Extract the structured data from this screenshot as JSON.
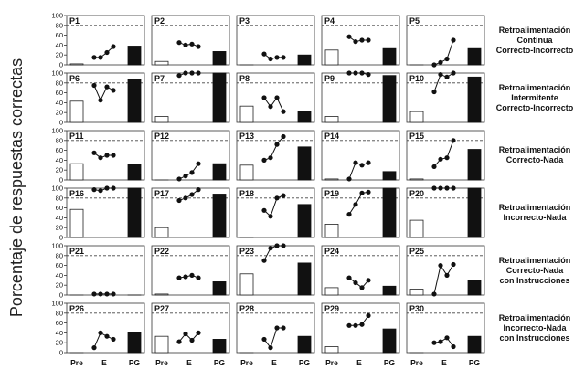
{
  "ylabel": "Porcentaje de respuestas correctas",
  "conditions": [
    [
      "Retroalimentación",
      "Continua",
      "Correcto-Incorrecto"
    ],
    [
      "Retroalimentación",
      "Intermitente",
      "Correcto-Incorrecto"
    ],
    [
      "Retroalimentación",
      "Correcto-Nada"
    ],
    [
      "Retroalimentación",
      "Incorrecto-Nada"
    ],
    [
      "Retroalimentación",
      "Correcto-Nada",
      "con Instrucciones"
    ],
    [
      "Retroalimentación",
      "Incorrecto-Nada",
      "con Instrucciones"
    ]
  ],
  "chart_data": {
    "type": "small-multiples (bar + line)",
    "xticks": [
      "Pre",
      "E",
      "PG"
    ],
    "yticks": [
      0,
      20,
      40,
      60,
      80,
      100
    ],
    "ylim": [
      0,
      100
    ],
    "criterion_line": 80,
    "panels": [
      {
        "label": "P1",
        "pre": 2,
        "e": [
          15,
          15,
          25,
          37
        ],
        "pg": 38
      },
      {
        "label": "P2",
        "pre": 7,
        "e": [
          45,
          40,
          42,
          37
        ],
        "pg": 27
      },
      {
        "label": "P3",
        "pre": 0,
        "e": [
          22,
          12,
          15,
          15
        ],
        "pg": 20
      },
      {
        "label": "P4",
        "pre": 30,
        "e": [
          57,
          47,
          50,
          50
        ],
        "pg": 33
      },
      {
        "label": "P5",
        "pre": 0,
        "e": [
          0,
          5,
          12,
          50
        ],
        "pg": 33
      },
      {
        "label": "P6",
        "pre": 43,
        "e": [
          75,
          45,
          72,
          65
        ],
        "pg": 88
      },
      {
        "label": "P7",
        "pre": 12,
        "e": [
          95,
          100,
          100,
          100
        ],
        "pg": 100
      },
      {
        "label": "P8",
        "pre": 33,
        "e": [
          50,
          32,
          50,
          22
        ],
        "pg": 22
      },
      {
        "label": "P9",
        "pre": 12,
        "e": [
          100,
          100,
          100,
          97
        ],
        "pg": 95
      },
      {
        "label": "P10",
        "pre": 22,
        "e": [
          62,
          97,
          92,
          100
        ],
        "pg": 92
      },
      {
        "label": "P11",
        "pre": 33,
        "e": [
          55,
          45,
          50,
          50
        ],
        "pg": 32
      },
      {
        "label": "P12",
        "pre": 0,
        "e": [
          2,
          8,
          15,
          33
        ],
        "pg": 33
      },
      {
        "label": "P13",
        "pre": 30,
        "e": [
          40,
          45,
          72,
          88
        ],
        "pg": 67
      },
      {
        "label": "P14",
        "pre": 2,
        "e": [
          2,
          35,
          30,
          35
        ],
        "pg": 17
      },
      {
        "label": "P15",
        "pre": 2,
        "e": [
          27,
          42,
          45,
          80
        ],
        "pg": 62
      },
      {
        "label": "P16",
        "pre": 57,
        "e": [
          97,
          95,
          100,
          100
        ],
        "pg": 100
      },
      {
        "label": "P17",
        "pre": 20,
        "e": [
          75,
          80,
          87,
          97
        ],
        "pg": 88
      },
      {
        "label": "P18",
        "pre": 0,
        "e": [
          55,
          43,
          80,
          85
        ],
        "pg": 67
      },
      {
        "label": "P19",
        "pre": 27,
        "e": [
          47,
          67,
          90,
          92
        ],
        "pg": 100
      },
      {
        "label": "P20",
        "pre": 35,
        "e": [
          100,
          100,
          100,
          100
        ],
        "pg": 100
      },
      {
        "label": "P21",
        "pre": 0,
        "e": [
          2,
          2,
          2,
          2
        ],
        "pg": 0
      },
      {
        "label": "P22",
        "pre": 2,
        "e": [
          35,
          37,
          40,
          35
        ],
        "pg": 27
      },
      {
        "label": "P23",
        "pre": 43,
        "e": [
          70,
          95,
          100,
          100
        ],
        "pg": 65
      },
      {
        "label": "P24",
        "pre": 15,
        "e": [
          35,
          25,
          15,
          30
        ],
        "pg": 18
      },
      {
        "label": "P25",
        "pre": 12,
        "e": [
          2,
          60,
          40,
          62
        ],
        "pg": 30
      },
      {
        "label": "P26",
        "pre": 0,
        "e": [
          10,
          40,
          33,
          27
        ],
        "pg": 40
      },
      {
        "label": "P27",
        "pre": 33,
        "e": [
          22,
          38,
          25,
          40
        ],
        "pg": 27
      },
      {
        "label": "P28",
        "pre": 0,
        "e": [
          27,
          10,
          50,
          50
        ],
        "pg": 33
      },
      {
        "label": "P29",
        "pre": 12,
        "e": [
          55,
          55,
          57,
          75
        ],
        "pg": 48
      },
      {
        "label": "P30",
        "pre": 0,
        "e": [
          20,
          22,
          30,
          12
        ],
        "pg": 33
      }
    ]
  }
}
